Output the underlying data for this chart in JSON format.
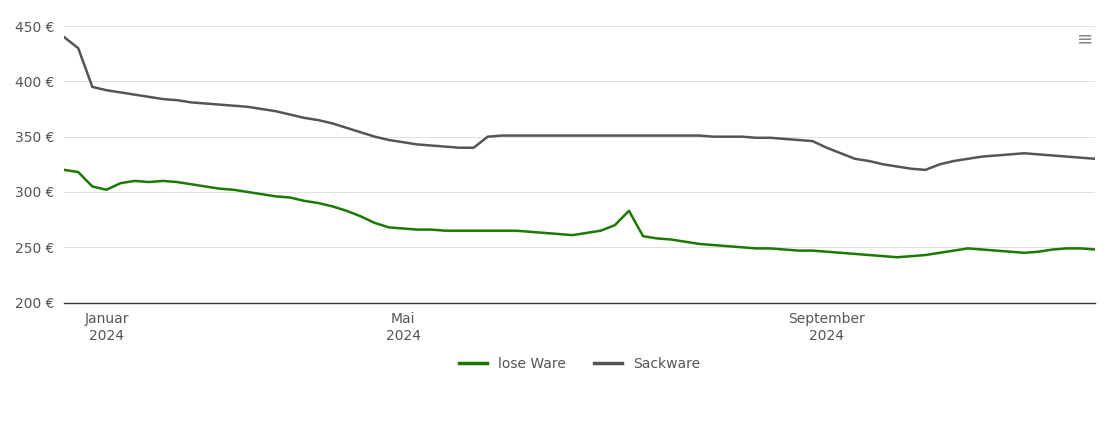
{
  "title": "",
  "background_color": "#ffffff",
  "grid_color": "#e0e0e0",
  "ylim": [
    200,
    460
  ],
  "yticks": [
    200,
    250,
    300,
    350,
    400,
    450
  ],
  "ylabel_format": "{} €",
  "legend_labels": [
    "lose Ware",
    "Sackware"
  ],
  "legend_colors": [
    "#1a7a00",
    "#555555"
  ],
  "lose_ware_color": "#1a7a00",
  "sackware_color": "#555555",
  "x_tick_labels": [
    "Januar\n2024",
    "Mai\n2024",
    "September\n2024"
  ],
  "lose_ware": {
    "x": [
      0,
      5,
      10,
      15,
      20,
      25,
      30,
      35,
      40,
      45,
      50,
      55,
      60,
      65,
      70,
      75,
      80,
      85,
      90,
      95,
      100,
      105,
      110,
      115,
      120,
      125,
      130,
      135,
      140,
      145,
      150,
      155,
      160,
      165,
      170,
      175,
      180,
      185,
      190,
      195,
      200,
      205,
      210,
      215,
      220,
      225,
      230,
      235,
      240,
      245,
      250,
      255,
      260,
      265,
      270,
      275,
      280,
      285,
      290,
      295,
      300,
      305,
      310,
      315,
      320,
      325,
      330,
      335,
      340,
      345,
      350,
      355,
      360,
      365
    ],
    "y": [
      320,
      318,
      305,
      302,
      308,
      310,
      309,
      310,
      309,
      307,
      305,
      303,
      302,
      300,
      298,
      296,
      295,
      292,
      290,
      287,
      283,
      278,
      272,
      268,
      267,
      266,
      266,
      265,
      265,
      265,
      265,
      265,
      265,
      264,
      263,
      262,
      261,
      263,
      265,
      270,
      283,
      260,
      258,
      257,
      255,
      253,
      252,
      251,
      250,
      249,
      249,
      248,
      247,
      247,
      246,
      245,
      244,
      243,
      242,
      241,
      242,
      243,
      245,
      247,
      249,
      248,
      247,
      246,
      245,
      246,
      248,
      249,
      249,
      248
    ]
  },
  "sackware": {
    "x": [
      0,
      5,
      10,
      15,
      20,
      25,
      30,
      35,
      40,
      45,
      50,
      55,
      60,
      65,
      70,
      75,
      80,
      85,
      90,
      95,
      100,
      105,
      110,
      115,
      120,
      125,
      130,
      135,
      140,
      145,
      150,
      155,
      160,
      165,
      170,
      175,
      180,
      185,
      190,
      195,
      200,
      205,
      210,
      215,
      220,
      225,
      230,
      235,
      240,
      245,
      250,
      255,
      260,
      265,
      270,
      275,
      280,
      285,
      290,
      295,
      300,
      305,
      310,
      315,
      320,
      325,
      330,
      335,
      340,
      345,
      350,
      355,
      360,
      365
    ],
    "y": [
      440,
      430,
      395,
      392,
      390,
      388,
      386,
      384,
      383,
      381,
      380,
      379,
      378,
      377,
      375,
      373,
      370,
      367,
      365,
      362,
      358,
      354,
      350,
      347,
      345,
      343,
      342,
      341,
      340,
      340,
      350,
      351,
      351,
      351,
      351,
      351,
      351,
      351,
      351,
      351,
      351,
      351,
      351,
      351,
      351,
      351,
      350,
      350,
      350,
      349,
      349,
      348,
      347,
      346,
      340,
      335,
      330,
      328,
      325,
      323,
      321,
      320,
      325,
      328,
      330,
      332,
      333,
      334,
      335,
      334,
      333,
      332,
      331,
      330
    ]
  },
  "x_tick_positions": [
    15,
    120,
    270
  ],
  "linewidth": 1.8
}
